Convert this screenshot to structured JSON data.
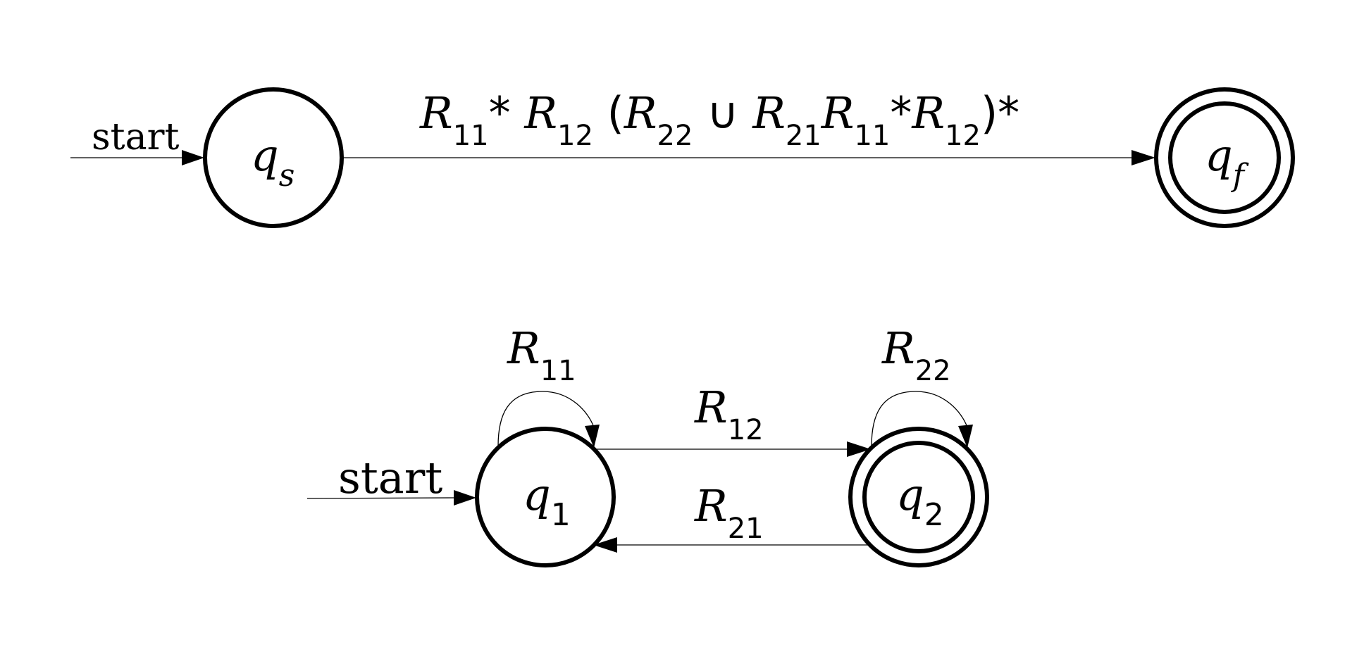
{
  "diagrams": [
    {
      "states": [
        {
          "var": "q",
          "sub": "s",
          "accepting": false,
          "initial": true
        },
        {
          "var": "q",
          "sub": "f",
          "accepting": true,
          "initial": false
        }
      ],
      "start_label": "start",
      "transition": {
        "parts": [
          {
            "r": "R",
            "sub": "11"
          },
          {
            "op": "* "
          },
          {
            "r": "R",
            "sub": "12"
          },
          {
            "op": " ("
          },
          {
            "r": "R",
            "sub": "22"
          },
          {
            "op": " ∪ "
          },
          {
            "r": "R",
            "sub": "21"
          },
          {
            "r": "R",
            "sub": "11"
          },
          {
            "op": "*"
          },
          {
            "r": "R",
            "sub": "12"
          },
          {
            "op": ")*"
          }
        ]
      }
    },
    {
      "states": [
        {
          "var": "q",
          "sub": "1",
          "accepting": false,
          "initial": true
        },
        {
          "var": "q",
          "sub": "2",
          "accepting": true,
          "initial": false
        }
      ],
      "start_label": "start",
      "transitions": [
        {
          "from": "q1",
          "to": "q1",
          "label": {
            "r": "R",
            "sub": "11"
          }
        },
        {
          "from": "q1",
          "to": "q2",
          "label": {
            "r": "R",
            "sub": "12"
          }
        },
        {
          "from": "q2",
          "to": "q1",
          "label": {
            "r": "R",
            "sub": "21"
          }
        },
        {
          "from": "q2",
          "to": "q2",
          "label": {
            "r": "R",
            "sub": "22"
          }
        }
      ]
    }
  ]
}
